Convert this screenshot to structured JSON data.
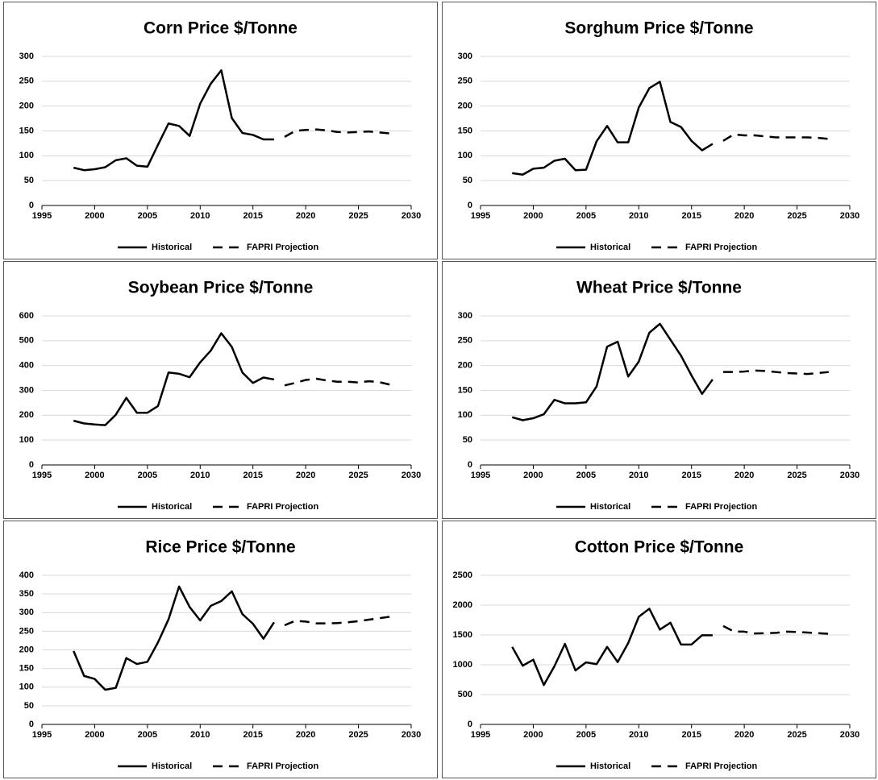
{
  "chart_data": [
    {
      "type": "line",
      "title": "Corn Price $/Tonne",
      "xlim": [
        1995,
        2030
      ],
      "xticks": [
        1995,
        2000,
        2005,
        2010,
        2015,
        2020,
        2025,
        2030
      ],
      "ylim": [
        0,
        300
      ],
      "yticks": [
        0,
        50,
        100,
        150,
        200,
        250,
        300
      ],
      "grid": true,
      "series": [
        {
          "name": "Historical",
          "color": "#000000",
          "linestyle": "solid",
          "x": [
            1998,
            1999,
            2000,
            2001,
            2002,
            2003,
            2004,
            2005,
            2006,
            2007,
            2008,
            2009,
            2010,
            2011,
            2012,
            2013,
            2014,
            2015,
            2016,
            2017
          ],
          "values": [
            76,
            71,
            73,
            77,
            91,
            95,
            80,
            78,
            122,
            165,
            160,
            140,
            205,
            245,
            272,
            176,
            146,
            142,
            133,
            133
          ]
        },
        {
          "name": "FAPRI Projection",
          "color": "#000000",
          "linestyle": "dashed",
          "x": [
            2018,
            2019,
            2020,
            2021,
            2022,
            2023,
            2024,
            2025,
            2026,
            2027,
            2028
          ],
          "values": [
            138,
            150,
            152,
            153,
            151,
            148,
            147,
            148,
            149,
            147,
            145
          ]
        }
      ]
    },
    {
      "type": "line",
      "title": "Sorghum Price $/Tonne",
      "xlim": [
        1995,
        2030
      ],
      "xticks": [
        1995,
        2000,
        2005,
        2010,
        2015,
        2020,
        2025,
        2030
      ],
      "ylim": [
        0,
        300
      ],
      "yticks": [
        0,
        50,
        100,
        150,
        200,
        250,
        300
      ],
      "grid": true,
      "series": [
        {
          "name": "Historical",
          "color": "#000000",
          "linestyle": "solid",
          "x": [
            1998,
            1999,
            2000,
            2001,
            2002,
            2003,
            2004,
            2005,
            2006,
            2007,
            2008,
            2009,
            2010,
            2011,
            2012,
            2013,
            2014,
            2015,
            2016,
            2017
          ],
          "values": [
            65,
            62,
            74,
            76,
            90,
            94,
            71,
            72,
            129,
            160,
            127,
            127,
            197,
            236,
            249,
            168,
            158,
            130,
            111,
            124
          ]
        },
        {
          "name": "FAPRI Projection",
          "color": "#000000",
          "linestyle": "dashed",
          "x": [
            2018,
            2019,
            2020,
            2021,
            2022,
            2023,
            2024,
            2025,
            2026,
            2027,
            2028
          ],
          "values": [
            130,
            143,
            141,
            141,
            139,
            137,
            137,
            137,
            137,
            136,
            134
          ]
        }
      ]
    },
    {
      "type": "line",
      "title": "Soybean Price $/Tonne",
      "xlim": [
        1995,
        2030
      ],
      "xticks": [
        1995,
        2000,
        2005,
        2010,
        2015,
        2020,
        2025,
        2030
      ],
      "ylim": [
        0,
        600
      ],
      "yticks": [
        0,
        100,
        200,
        300,
        400,
        500,
        600
      ],
      "grid": true,
      "series": [
        {
          "name": "Historical",
          "color": "#000000",
          "linestyle": "solid",
          "x": [
            1998,
            1999,
            2000,
            2001,
            2002,
            2003,
            2004,
            2005,
            2006,
            2007,
            2008,
            2009,
            2010,
            2011,
            2012,
            2013,
            2014,
            2015,
            2016,
            2017
          ],
          "values": [
            178,
            167,
            163,
            160,
            202,
            270,
            210,
            210,
            237,
            372,
            367,
            353,
            413,
            460,
            530,
            475,
            372,
            330,
            352,
            344
          ]
        },
        {
          "name": "FAPRI Projection",
          "color": "#000000",
          "linestyle": "dashed",
          "x": [
            2018,
            2019,
            2020,
            2021,
            2022,
            2023,
            2024,
            2025,
            2026,
            2027,
            2028
          ],
          "values": [
            320,
            330,
            342,
            347,
            340,
            335,
            335,
            332,
            337,
            333,
            323
          ]
        }
      ]
    },
    {
      "type": "line",
      "title": "Wheat Price $/Tonne",
      "xlim": [
        1995,
        2030
      ],
      "xticks": [
        1995,
        2000,
        2005,
        2010,
        2015,
        2020,
        2025,
        2030
      ],
      "ylim": [
        0,
        300
      ],
      "yticks": [
        0,
        50,
        100,
        150,
        200,
        250,
        300
      ],
      "grid": true,
      "series": [
        {
          "name": "Historical",
          "color": "#000000",
          "linestyle": "solid",
          "x": [
            1998,
            1999,
            2000,
            2001,
            2002,
            2003,
            2004,
            2005,
            2006,
            2007,
            2008,
            2009,
            2010,
            2011,
            2012,
            2013,
            2014,
            2015,
            2016,
            2017
          ],
          "values": [
            96,
            90,
            94,
            102,
            131,
            124,
            124,
            126,
            158,
            238,
            248,
            178,
            208,
            266,
            284,
            252,
            220,
            180,
            143,
            172
          ]
        },
        {
          "name": "FAPRI Projection",
          "color": "#000000",
          "linestyle": "dashed",
          "x": [
            2018,
            2019,
            2020,
            2021,
            2022,
            2023,
            2024,
            2025,
            2026,
            2027,
            2028
          ],
          "values": [
            187,
            187,
            188,
            190,
            189,
            187,
            185,
            184,
            183,
            185,
            187
          ]
        }
      ]
    },
    {
      "type": "line",
      "title": "Rice Price $/Tonne",
      "xlim": [
        1995,
        2030
      ],
      "xticks": [
        1995,
        2000,
        2005,
        2010,
        2015,
        2020,
        2025,
        2030
      ],
      "ylim": [
        0,
        400
      ],
      "yticks": [
        0,
        50,
        100,
        150,
        200,
        250,
        300,
        350,
        400
      ],
      "grid": true,
      "series": [
        {
          "name": "Historical",
          "color": "#000000",
          "linestyle": "solid",
          "x": [
            1998,
            1999,
            2000,
            2001,
            2002,
            2003,
            2004,
            2005,
            2006,
            2007,
            2008,
            2009,
            2010,
            2011,
            2012,
            2013,
            2014,
            2015,
            2016,
            2017
          ],
          "values": [
            197,
            130,
            122,
            93,
            98,
            178,
            162,
            168,
            220,
            282,
            370,
            315,
            279,
            318,
            331,
            357,
            296,
            270,
            230,
            274
          ]
        },
        {
          "name": "FAPRI Projection",
          "color": "#000000",
          "linestyle": "dashed",
          "x": [
            2018,
            2019,
            2020,
            2021,
            2022,
            2023,
            2024,
            2025,
            2026,
            2027,
            2028
          ],
          "values": [
            266,
            278,
            276,
            271,
            271,
            272,
            274,
            277,
            281,
            285,
            289
          ]
        }
      ]
    },
    {
      "type": "line",
      "title": "Cotton Price $/Tonne",
      "xlim": [
        1995,
        2030
      ],
      "xticks": [
        1995,
        2000,
        2005,
        2010,
        2015,
        2020,
        2025,
        2030
      ],
      "ylim": [
        0,
        2500
      ],
      "yticks": [
        0,
        500,
        1000,
        1500,
        2000,
        2500
      ],
      "grid": true,
      "series": [
        {
          "name": "Historical",
          "color": "#000000",
          "linestyle": "solid",
          "x": [
            1998,
            1999,
            2000,
            2001,
            2002,
            2003,
            2004,
            2005,
            2006,
            2007,
            2008,
            2009,
            2010,
            2011,
            2012,
            2013,
            2014,
            2015,
            2016,
            2017
          ],
          "values": [
            1300,
            985,
            1085,
            660,
            975,
            1350,
            905,
            1040,
            1010,
            1300,
            1045,
            1365,
            1805,
            1940,
            1590,
            1705,
            1340,
            1340,
            1495,
            1495
          ]
        },
        {
          "name": "FAPRI Projection",
          "color": "#000000",
          "linestyle": "dashed",
          "x": [
            2018,
            2019,
            2020,
            2021,
            2022,
            2023,
            2024,
            2025,
            2026,
            2027,
            2028
          ],
          "values": [
            1650,
            1560,
            1555,
            1525,
            1530,
            1535,
            1555,
            1550,
            1540,
            1530,
            1520
          ]
        }
      ]
    }
  ]
}
